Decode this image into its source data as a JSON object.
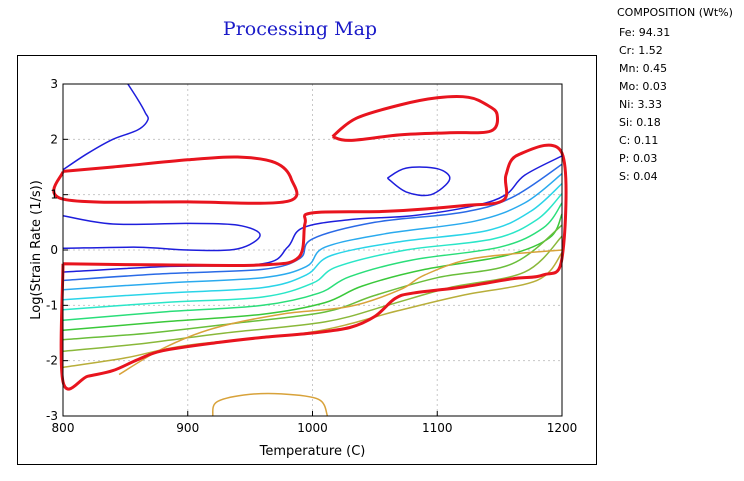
{
  "chart_data": {
    "type": "contour",
    "title": "Processing Map",
    "xlabel": "Temperature (C)",
    "ylabel": "Log(Strain Rate (1/s))",
    "xlim": [
      800,
      1200
    ],
    "ylim": [
      -3,
      3
    ],
    "x_ticks": [
      "800",
      "900",
      "1000",
      "1100",
      "1200"
    ],
    "y_ticks": [
      "3",
      "2",
      "1",
      "0",
      "-1",
      "-2",
      "-3"
    ],
    "grid": true,
    "instability_boundaries": [
      {
        "name": "left-top",
        "color": "#e8141e",
        "points": [
          [
            800,
            1.42
          ],
          [
            840,
            1.5
          ],
          [
            900,
            1.63
          ],
          [
            940,
            1.68
          ],
          [
            970,
            1.58
          ],
          [
            983,
            1.28
          ],
          [
            980,
            0.88
          ],
          [
            900,
            0.87
          ],
          [
            800,
            0.92
          ],
          [
            800,
            1.42
          ]
        ]
      },
      {
        "name": "right-top",
        "color": "#e8141e",
        "points": [
          [
            1016,
            2.05
          ],
          [
            1035,
            2.38
          ],
          [
            1070,
            2.62
          ],
          [
            1100,
            2.75
          ],
          [
            1125,
            2.76
          ],
          [
            1140,
            2.62
          ],
          [
            1148,
            2.45
          ],
          [
            1143,
            2.15
          ],
          [
            1110,
            2.12
          ],
          [
            1070,
            2.08
          ],
          [
            1030,
            1.98
          ],
          [
            1016,
            2.05
          ]
        ]
      },
      {
        "name": "main",
        "color": "#e8141e",
        "points": [
          [
            800,
            -0.25
          ],
          [
            880,
            -0.27
          ],
          [
            960,
            -0.27
          ],
          [
            989,
            -0.13
          ],
          [
            994,
            0.48
          ],
          [
            1000,
            0.67
          ],
          [
            1060,
            0.7
          ],
          [
            1120,
            0.8
          ],
          [
            1153,
            0.9
          ],
          [
            1155,
            1.35
          ],
          [
            1165,
            1.72
          ],
          [
            1200,
            1.75
          ],
          [
            1200,
            -0.15
          ],
          [
            1185,
            -0.45
          ],
          [
            1160,
            -0.52
          ],
          [
            1120,
            -0.67
          ],
          [
            1080,
            -0.78
          ],
          [
            1066,
            -0.88
          ],
          [
            1050,
            -1.2
          ],
          [
            1030,
            -1.4
          ],
          [
            1000,
            -1.5
          ],
          [
            960,
            -1.58
          ],
          [
            925,
            -1.67
          ],
          [
            880,
            -1.82
          ],
          [
            860,
            -1.98
          ],
          [
            840,
            -2.18
          ],
          [
            820,
            -2.28
          ],
          [
            800,
            -2.38
          ],
          [
            800,
            -0.25
          ]
        ]
      }
    ],
    "contour_lines": [
      {
        "color": "#1e1edc",
        "points": [
          [
            852,
            3.0
          ],
          [
            860,
            2.72
          ],
          [
            866,
            2.48
          ],
          [
            868,
            2.35
          ],
          [
            860,
            2.17
          ],
          [
            840,
            2.0
          ],
          [
            820,
            1.75
          ],
          [
            800,
            1.45
          ]
        ]
      },
      {
        "color": "#1e1edc",
        "points": [
          [
            1060,
            1.3
          ],
          [
            1075,
            1.48
          ],
          [
            1100,
            1.47
          ],
          [
            1110,
            1.28
          ],
          [
            1095,
            1.0
          ],
          [
            1075,
            1.05
          ],
          [
            1060,
            1.3
          ]
        ]
      },
      {
        "color": "#1e1edc",
        "points": [
          [
            800,
            0.62
          ],
          [
            840,
            0.47
          ],
          [
            900,
            0.48
          ],
          [
            940,
            0.45
          ],
          [
            958,
            0.27
          ],
          [
            940,
            0.02
          ],
          [
            900,
            0.0
          ],
          [
            860,
            0.05
          ],
          [
            800,
            0.03
          ]
        ]
      },
      {
        "color": "#1e1edc",
        "points": [
          [
            800,
            -0.4
          ],
          [
            880,
            -0.3
          ],
          [
            960,
            -0.25
          ],
          [
            980,
            0.05
          ],
          [
            992,
            0.4
          ],
          [
            1030,
            0.55
          ],
          [
            1080,
            0.62
          ],
          [
            1130,
            0.8
          ],
          [
            1155,
            1.0
          ],
          [
            1170,
            1.35
          ],
          [
            1200,
            1.7
          ]
        ]
      },
      {
        "color": "#2a6ae6",
        "points": [
          [
            800,
            -0.55
          ],
          [
            880,
            -0.43
          ],
          [
            960,
            -0.35
          ],
          [
            990,
            -0.15
          ],
          [
            1000,
            0.2
          ],
          [
            1050,
            0.5
          ],
          [
            1120,
            0.68
          ],
          [
            1160,
            0.95
          ],
          [
            1200,
            1.55
          ]
        ]
      },
      {
        "color": "#2aaaee",
        "points": [
          [
            800,
            -0.72
          ],
          [
            880,
            -0.6
          ],
          [
            960,
            -0.5
          ],
          [
            995,
            -0.3
          ],
          [
            1010,
            0.05
          ],
          [
            1060,
            0.3
          ],
          [
            1130,
            0.52
          ],
          [
            1170,
            0.85
          ],
          [
            1200,
            1.38
          ]
        ]
      },
      {
        "color": "#2ad4e8",
        "points": [
          [
            800,
            -0.9
          ],
          [
            880,
            -0.78
          ],
          [
            960,
            -0.68
          ],
          [
            995,
            -0.45
          ],
          [
            1015,
            -0.1
          ],
          [
            1070,
            0.15
          ],
          [
            1140,
            0.35
          ],
          [
            1175,
            0.7
          ],
          [
            1200,
            1.2
          ]
        ]
      },
      {
        "color": "#2ae6c8",
        "points": [
          [
            800,
            -1.08
          ],
          [
            880,
            -0.95
          ],
          [
            960,
            -0.85
          ],
          [
            1000,
            -0.6
          ],
          [
            1020,
            -0.3
          ],
          [
            1075,
            0.0
          ],
          [
            1145,
            0.2
          ],
          [
            1180,
            0.55
          ],
          [
            1200,
            1.02
          ]
        ]
      },
      {
        "color": "#2ade7a",
        "points": [
          [
            800,
            -1.27
          ],
          [
            880,
            -1.12
          ],
          [
            960,
            -1.0
          ],
          [
            1005,
            -0.78
          ],
          [
            1030,
            -0.48
          ],
          [
            1080,
            -0.18
          ],
          [
            1150,
            0.05
          ],
          [
            1185,
            0.4
          ],
          [
            1200,
            0.85
          ]
        ]
      },
      {
        "color": "#3ac83a",
        "points": [
          [
            800,
            -1.45
          ],
          [
            880,
            -1.3
          ],
          [
            960,
            -1.16
          ],
          [
            1010,
            -0.95
          ],
          [
            1040,
            -0.65
          ],
          [
            1090,
            -0.35
          ],
          [
            1155,
            -0.1
          ],
          [
            1190,
            0.22
          ],
          [
            1200,
            0.65
          ]
        ]
      },
      {
        "color": "#6abe3a",
        "points": [
          [
            800,
            -1.62
          ],
          [
            870,
            -1.5
          ],
          [
            940,
            -1.32
          ],
          [
            1010,
            -1.12
          ],
          [
            1050,
            -0.82
          ],
          [
            1100,
            -0.5
          ],
          [
            1160,
            -0.25
          ],
          [
            1200,
            0.45
          ]
        ]
      },
      {
        "color": "#8ab83a",
        "points": [
          [
            800,
            -1.83
          ],
          [
            860,
            -1.7
          ],
          [
            930,
            -1.5
          ],
          [
            1010,
            -1.3
          ],
          [
            1060,
            -1.0
          ],
          [
            1110,
            -0.68
          ],
          [
            1170,
            -0.4
          ],
          [
            1200,
            0.25
          ]
        ]
      },
      {
        "color": "#b8ae3a",
        "points": [
          [
            800,
            -2.12
          ],
          [
            850,
            -1.95
          ],
          [
            900,
            -1.72
          ],
          [
            1000,
            -1.48
          ],
          [
            1068,
            -1.1
          ],
          [
            1120,
            -0.82
          ],
          [
            1180,
            -0.55
          ],
          [
            1200,
            -0.05
          ]
        ]
      },
      {
        "color": "#d8a23a",
        "points": [
          [
            845,
            -2.25
          ],
          [
            880,
            -1.78
          ],
          [
            920,
            -1.42
          ],
          [
            975,
            -1.16
          ],
          [
            1030,
            -1.02
          ],
          [
            1070,
            -0.72
          ],
          [
            1090,
            -0.45
          ],
          [
            1130,
            -0.15
          ],
          [
            1200,
            0.0
          ]
        ]
      },
      {
        "color": "#d8a23a",
        "points": [
          [
            920,
            -3.0
          ],
          [
            923,
            -2.75
          ],
          [
            945,
            -2.62
          ],
          [
            975,
            -2.6
          ],
          [
            1005,
            -2.7
          ],
          [
            1012,
            -3.0
          ]
        ]
      }
    ]
  },
  "composition": {
    "header": "COMPOSITION (Wt%)",
    "items": [
      "Fe: 94.31",
      "Cr: 1.52",
      "Mn: 0.45",
      "Mo: 0.03",
      "Ni: 3.33",
      "Si: 0.18",
      "C: 0.11",
      "P: 0.03",
      "S: 0.04"
    ]
  }
}
